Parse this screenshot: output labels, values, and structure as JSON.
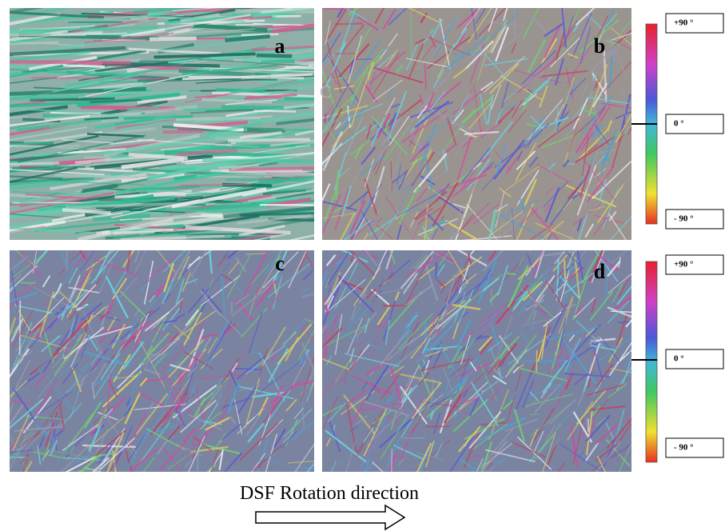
{
  "panels": [
    {
      "label": "a"
    },
    {
      "label": "b"
    },
    {
      "label": "c"
    },
    {
      "label": "d"
    }
  ],
  "stray_label": "C",
  "colorbars": [
    {
      "labels": [
        "+90 °",
        "0 °",
        "- 90 °"
      ]
    },
    {
      "labels": [
        "+90 °",
        "0 °",
        "- 90 °"
      ]
    }
  ],
  "caption": "DSF Rotation direction"
}
